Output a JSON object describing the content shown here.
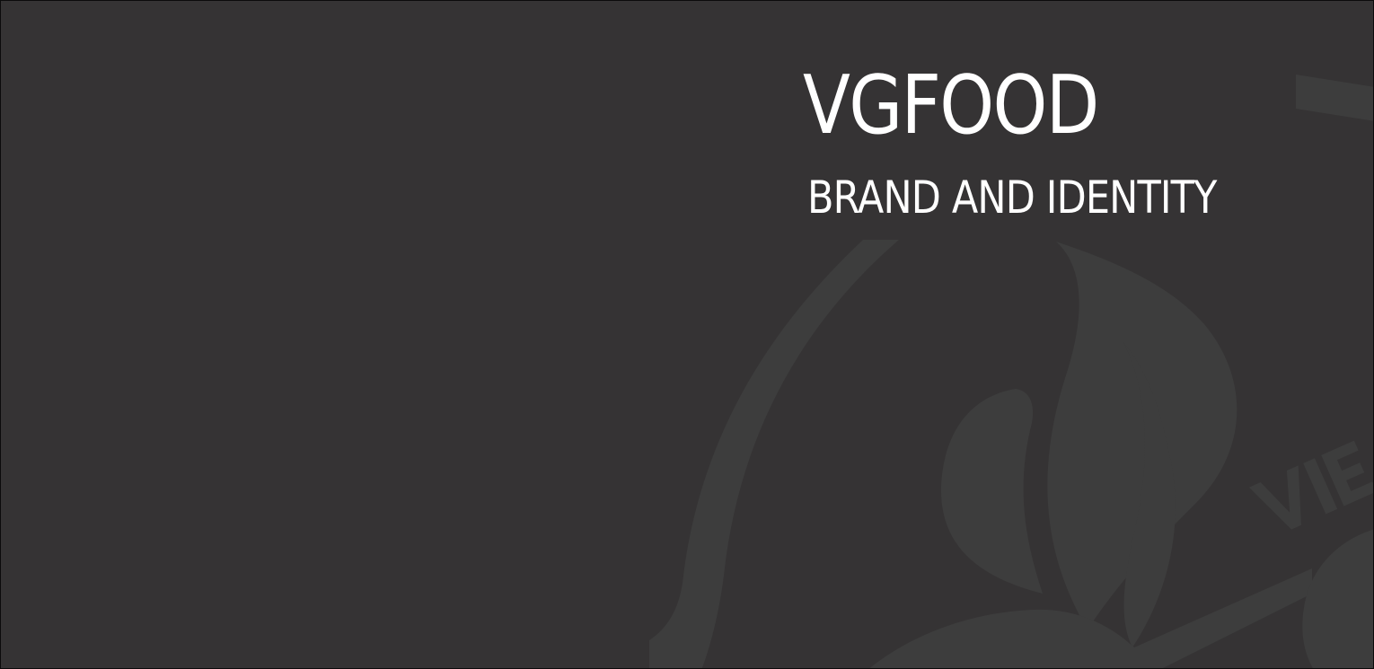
{
  "brand": {
    "title": "VGFOOD",
    "subtitle": "BRAND AND IDENTITY"
  },
  "watermark": {
    "icon": "leaf-emblem-icon",
    "partial_text": "VIE"
  },
  "colors": {
    "background": "#353334",
    "watermark": "#3d3d3d",
    "text": "#ffffff"
  }
}
